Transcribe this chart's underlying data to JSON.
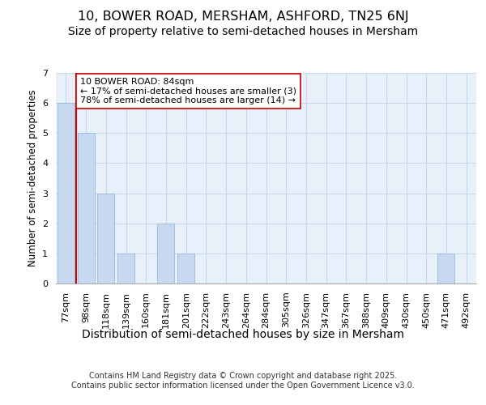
{
  "title_line1": "10, BOWER ROAD, MERSHAM, ASHFORD, TN25 6NJ",
  "title_line2": "Size of property relative to semi-detached houses in Mersham",
  "xlabel": "Distribution of semi-detached houses by size in Mersham",
  "ylabel": "Number of semi-detached properties",
  "categories": [
    "77sqm",
    "98sqm",
    "118sqm",
    "139sqm",
    "160sqm",
    "181sqm",
    "201sqm",
    "222sqm",
    "243sqm",
    "264sqm",
    "284sqm",
    "305sqm",
    "326sqm",
    "347sqm",
    "367sqm",
    "388sqm",
    "409sqm",
    "430sqm",
    "450sqm",
    "471sqm",
    "492sqm"
  ],
  "values": [
    6,
    5,
    3,
    1,
    0,
    2,
    1,
    0,
    0,
    0,
    0,
    0,
    0,
    0,
    0,
    0,
    0,
    0,
    0,
    1,
    0
  ],
  "bar_color": "#c6d9f1",
  "bar_edgecolor": "#9ab8d8",
  "vline_color": "#cc0000",
  "vline_x": 0.5,
  "annotation_text": "10 BOWER ROAD: 84sqm\n← 17% of semi-detached houses are smaller (3)\n78% of semi-detached houses are larger (14) →",
  "annotation_box_facecolor": "#ffffff",
  "annotation_box_edgecolor": "#cc0000",
  "ylim": [
    0,
    7
  ],
  "yticks": [
    0,
    1,
    2,
    3,
    4,
    5,
    6,
    7
  ],
  "grid_color": "#c8d8ea",
  "background_color": "#e8f0fa",
  "footer_text": "Contains HM Land Registry data © Crown copyright and database right 2025.\nContains public sector information licensed under the Open Government Licence v3.0.",
  "title_fontsize": 11.5,
  "subtitle_fontsize": 10,
  "xlabel_fontsize": 10,
  "ylabel_fontsize": 8.5,
  "tick_fontsize": 8,
  "annotation_fontsize": 8,
  "footer_fontsize": 7
}
